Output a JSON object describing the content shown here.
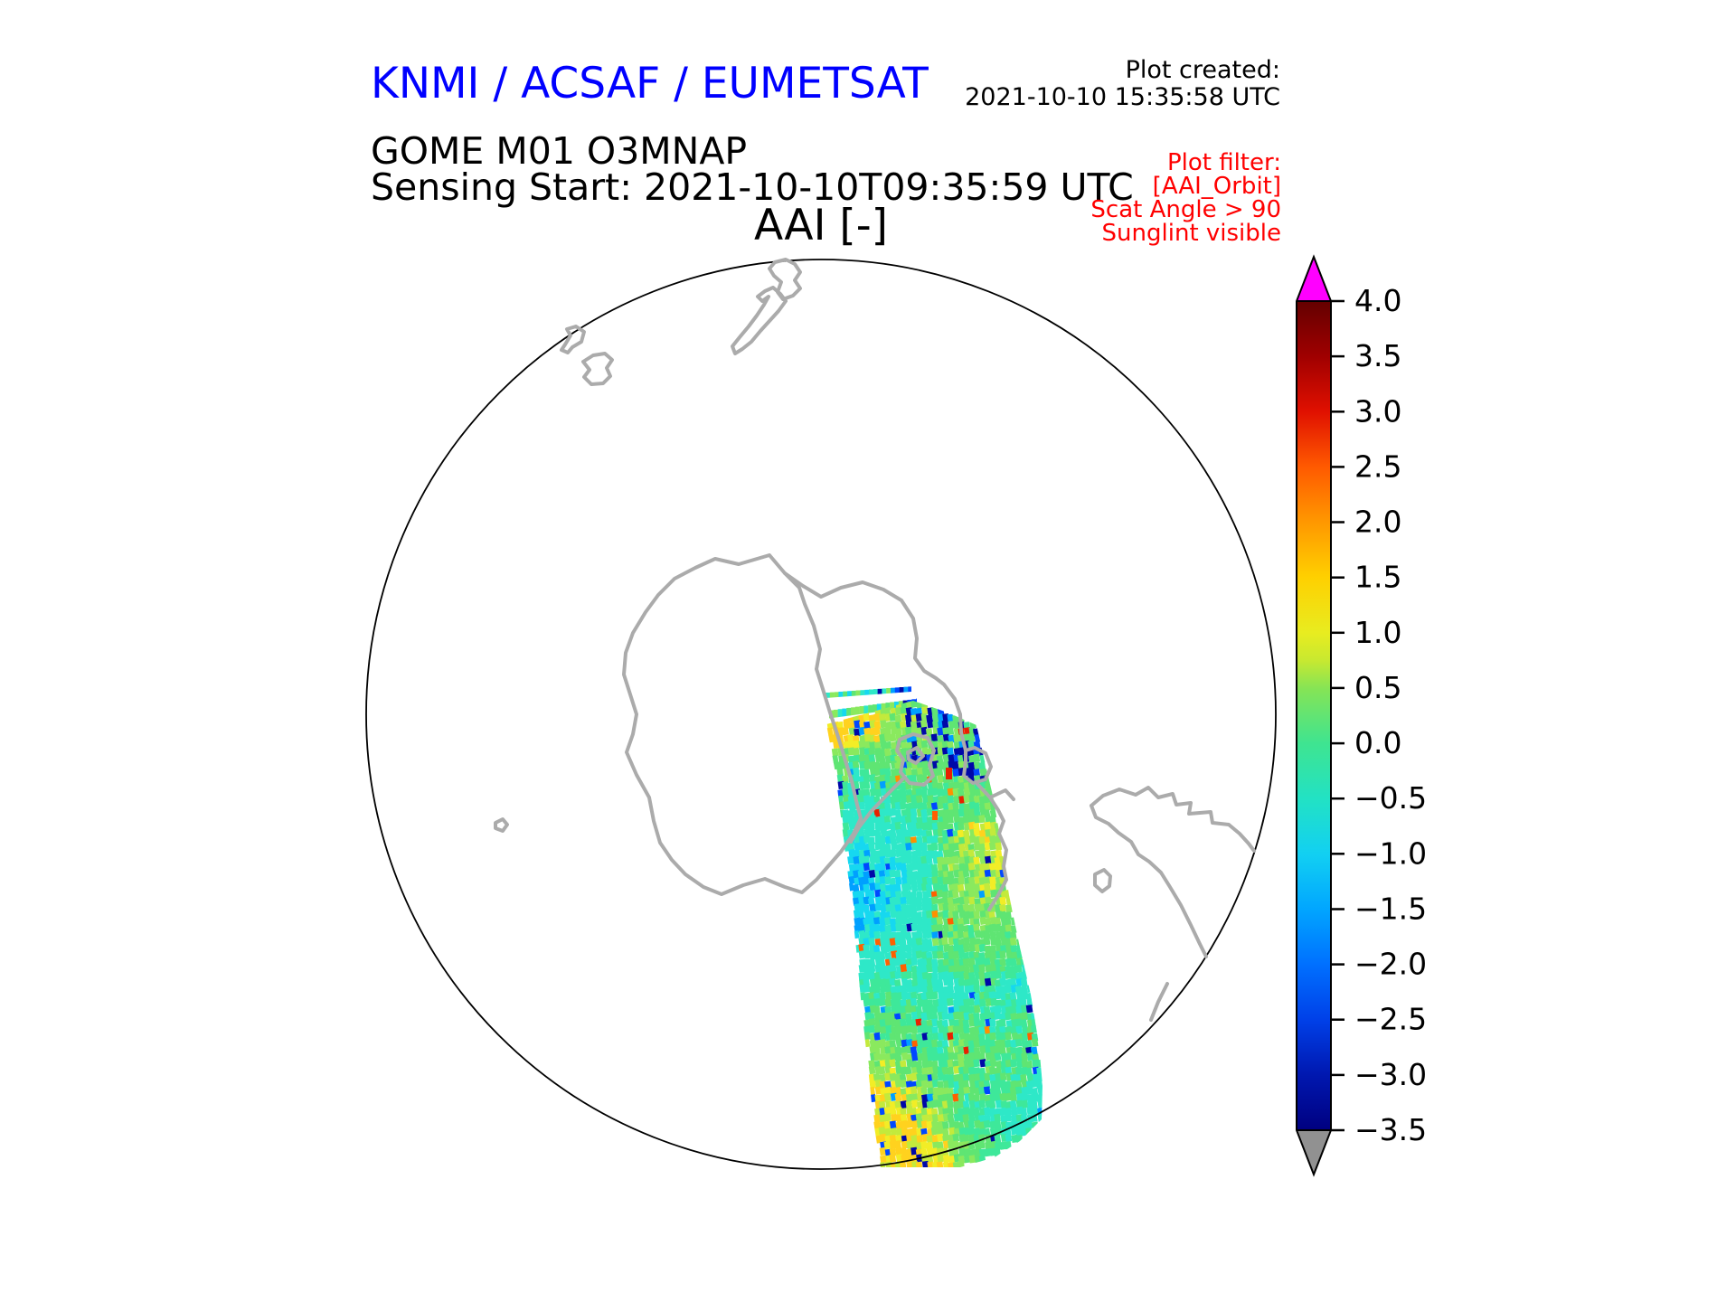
{
  "header": {
    "title": "KNMI / ACSAF / EUMETSAT",
    "title_color": "#0000ff",
    "product": "GOME M01 O3MNAP",
    "sensing": "Sensing Start: 2021-10-10T09:35:59 UTC",
    "created_label": "Plot created:",
    "created_time": "2021-10-10 15:35:58 UTC"
  },
  "filter": {
    "color": "#ff0000",
    "lines": [
      "Plot filter:",
      "[AAI_Orbit]",
      "Scat Angle > 90",
      "Sunglint visible"
    ]
  },
  "map": {
    "title": "AAI [-]",
    "coast_color": "#ababab",
    "outline_color": "#000000",
    "background": "#ffffff"
  },
  "colorbar": {
    "over_color": "#ff00ff",
    "under_color": "#919191",
    "ticks": [
      {
        "value": 4.0,
        "label": "4.0"
      },
      {
        "value": 3.5,
        "label": "3.5"
      },
      {
        "value": 3.0,
        "label": "3.0"
      },
      {
        "value": 2.5,
        "label": "2.5"
      },
      {
        "value": 2.0,
        "label": "2.0"
      },
      {
        "value": 1.5,
        "label": "1.5"
      },
      {
        "value": 1.0,
        "label": "1.0"
      },
      {
        "value": 0.5,
        "label": "0.5"
      },
      {
        "value": 0.0,
        "label": "0.0"
      },
      {
        "value": -0.5,
        "label": "−0.5"
      },
      {
        "value": -1.0,
        "label": "−1.0"
      },
      {
        "value": -1.5,
        "label": "−1.5"
      },
      {
        "value": -2.0,
        "label": "−2.0"
      },
      {
        "value": -2.5,
        "label": "−2.5"
      },
      {
        "value": -3.0,
        "label": "−3.0"
      },
      {
        "value": -3.5,
        "label": "−3.5"
      }
    ],
    "gradient": [
      [
        0.0,
        "#640000"
      ],
      [
        0.067,
        "#a00000"
      ],
      [
        0.133,
        "#e01000"
      ],
      [
        0.2,
        "#ff5a00"
      ],
      [
        0.267,
        "#ff9800"
      ],
      [
        0.333,
        "#ffd000"
      ],
      [
        0.4,
        "#e8ec20"
      ],
      [
        0.433,
        "#c8e930"
      ],
      [
        0.467,
        "#86e455"
      ],
      [
        0.533,
        "#3fe490"
      ],
      [
        0.6,
        "#22e2c4"
      ],
      [
        0.667,
        "#12d0f2"
      ],
      [
        0.733,
        "#01a6ff"
      ],
      [
        0.8,
        "#0070ff"
      ],
      [
        0.867,
        "#0040e8"
      ],
      [
        0.933,
        "#0018b0"
      ],
      [
        1.0,
        "#000080"
      ]
    ]
  },
  "swath_palette": {
    "navy": "#0008a8",
    "blue": "#0048ff",
    "skyblue": "#00a0ff",
    "cyan": "#16d8f0",
    "turquoise": "#2ee8c8",
    "spring": "#3ee89a",
    "green": "#5fe573",
    "lightgreen": "#8ae95e",
    "yelgreen": "#c3ea3c",
    "yellow": "#f2ed26",
    "gold": "#ffd21e",
    "orange": "#ff9000",
    "orangered": "#ff6000",
    "red": "#e82000"
  },
  "chart_data": {
    "type": "heatmap",
    "title": "AAI [-]",
    "projection": "polar stereographic, South Pole view with coastlines",
    "colorbar_range": [
      -3.5,
      4.0
    ],
    "colorbar_ticks": [
      4.0,
      3.5,
      3.0,
      2.5,
      2.0,
      1.5,
      1.0,
      0.5,
      0.0,
      -0.5,
      -1.0,
      -1.5,
      -2.0,
      -2.5,
      -3.0,
      -3.5
    ],
    "colorbar_over_color": "#ff00ff",
    "colorbar_under_color": "#919191",
    "legend_position": "right vertical colorbar with over/under arrows",
    "series": [
      {
        "name": "AAI orbit swath (GOME M01 O3MNAP)",
        "description": "Single descending orbit swath crossing the Antarctic Peninsula region; AAI values mostly between about -1.5 and +1.5 (greens/cyans/yellows) with sparse blue/navy streaks near -2 to -3 and isolated orange/red pixels near +2 to +3."
      }
    ]
  }
}
